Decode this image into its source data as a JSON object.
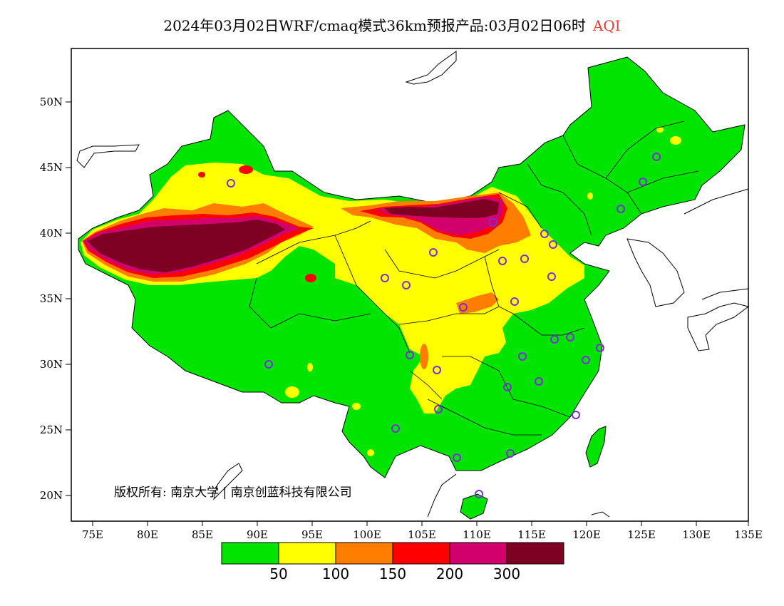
{
  "title": {
    "main": "2024年03月02日WRF/cmaq模式36km预报产品:03月02日06时",
    "variable": "AQI",
    "variable_color": "#e53935"
  },
  "map": {
    "lon_range": [
      73,
      135
    ],
    "lat_range": [
      18,
      54
    ],
    "y_ticks": [
      "50N",
      "45N",
      "40N",
      "35N",
      "30N",
      "25N",
      "20N"
    ],
    "x_ticks": [
      "75E",
      "80E",
      "85E",
      "90E",
      "95E",
      "100E",
      "105E",
      "110E",
      "115E",
      "120E",
      "125E",
      "130E",
      "135E"
    ],
    "copyright": "版权所有: 南京大学 | 南京创蓝科技有限公司",
    "station_marker_color": "#7b2fd6"
  },
  "legend": {
    "colors": [
      "#00e400",
      "#ffff00",
      "#ff7e00",
      "#ff0000",
      "#d1006c",
      "#7e0023"
    ],
    "labels": [
      "50",
      "100",
      "150",
      "200",
      "300"
    ]
  }
}
